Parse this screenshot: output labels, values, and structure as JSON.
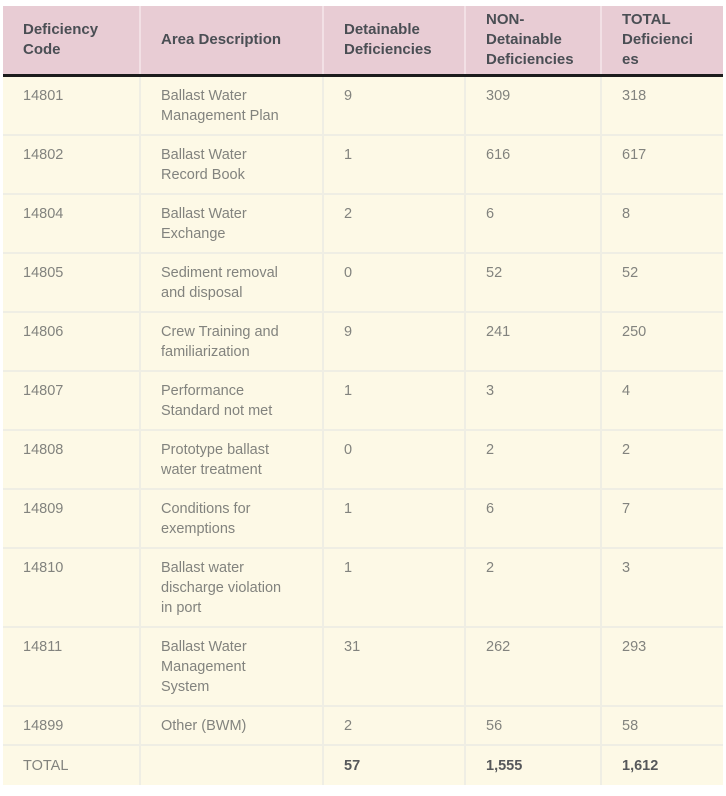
{
  "table": {
    "columns": [
      "Deficiency\nCode",
      "Area Description",
      "Detainable\nDeficiencies",
      "NON-\nDetainable\nDeficiencies",
      "TOTAL\nDeficienci\nes"
    ],
    "rows": [
      {
        "code": "14801",
        "area": "Ballast Water\nManagement Plan",
        "detainable": "9",
        "non_detainable": "309",
        "total": "318"
      },
      {
        "code": "14802",
        "area": "Ballast Water\nRecord Book",
        "detainable": "1",
        "non_detainable": "616",
        "total": "617"
      },
      {
        "code": "14804",
        "area": "Ballast Water\nExchange",
        "detainable": "2",
        "non_detainable": "6",
        "total": "8"
      },
      {
        "code": "14805",
        "area": "Sediment removal\nand disposal",
        "detainable": "0",
        "non_detainable": "52",
        "total": "52"
      },
      {
        "code": "14806",
        "area": "Crew Training and\nfamiliarization",
        "detainable": "9",
        "non_detainable": "241",
        "total": "250"
      },
      {
        "code": "14807",
        "area": "Performance\nStandard not met",
        "detainable": "1",
        "non_detainable": "3",
        "total": "4"
      },
      {
        "code": "14808",
        "area": "Prototype ballast\nwater treatment",
        "detainable": "0",
        "non_detainable": "2",
        "total": "2"
      },
      {
        "code": "14809",
        "area": "Conditions for\nexemptions",
        "detainable": "1",
        "non_detainable": "6",
        "total": "7"
      },
      {
        "code": "14810",
        "area": "Ballast water\ndischarge violation\nin port",
        "detainable": "1",
        "non_detainable": "2",
        "total": "3"
      },
      {
        "code": "14811",
        "area": "Ballast Water\nManagement\nSystem",
        "detainable": "31",
        "non_detainable": "262",
        "total": "293"
      },
      {
        "code": "14899",
        "area": "Other (BWM)",
        "detainable": "2",
        "non_detainable": "56",
        "total": "58"
      }
    ],
    "total_row": {
      "label": "TOTAL",
      "area": "",
      "detainable": "57",
      "non_detainable": "1,555",
      "total": "1,612"
    },
    "colors": {
      "header_bg": "#e8ccd4",
      "header_text": "#4a4e54",
      "header_divider": "#f2e0e5",
      "header_bottom_border": "#1c1c1c",
      "body_bg": "#fdf9e6",
      "body_text": "#82837e",
      "body_divider": "#efeee4",
      "total_text": "#56585a",
      "page_bg": "#ffffff"
    }
  }
}
